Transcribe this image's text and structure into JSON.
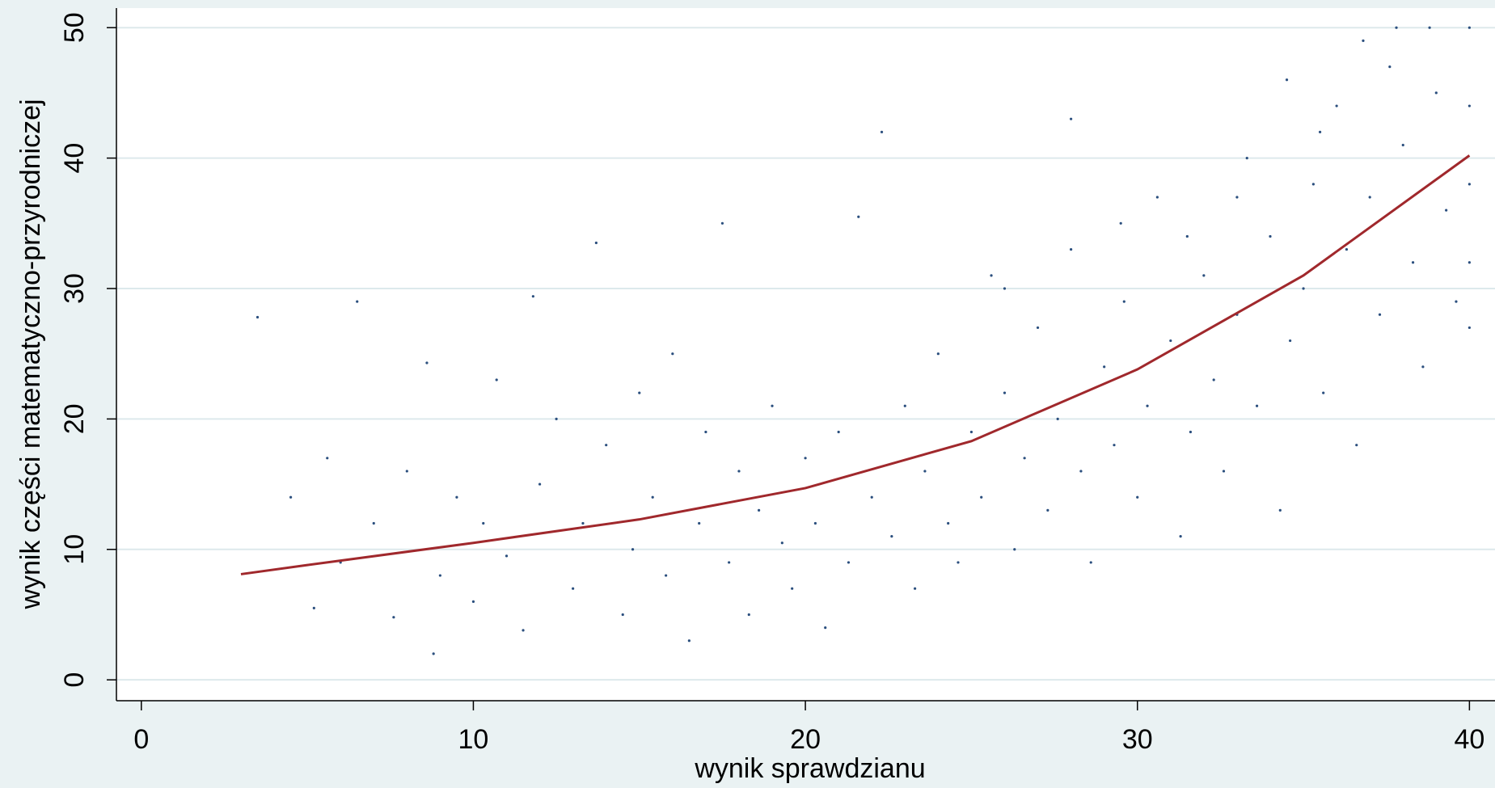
{
  "chart_data": {
    "type": "scatter",
    "x_label": "wynik sprawdzianu",
    "y_label": "wynik części matematyczno-przyrodniczej",
    "xlim": [
      -0.75,
      40.77
    ],
    "ylim": [
      -1.6,
      51.5
    ],
    "xticks": [
      0,
      10,
      20,
      30,
      40
    ],
    "yticks": [
      0,
      10,
      20,
      30,
      40,
      50
    ],
    "grid": true,
    "series": [
      {
        "type": "scatter",
        "color": "#2b4f7e",
        "x": [
          3.5,
          4.5,
          5.2,
          5.6,
          6,
          6.5,
          7,
          7.6,
          8,
          8.6,
          8.8,
          9,
          9.5,
          10,
          10.3,
          10.7,
          11,
          11.5,
          11.8,
          12,
          12.5,
          13,
          13.3,
          13.7,
          14,
          14.5,
          14.8,
          15,
          15.4,
          15.8,
          16,
          16.5,
          16.8,
          17,
          17.5,
          17.7,
          18,
          18.3,
          18.6,
          19,
          19.3,
          19.6,
          20,
          20.3,
          20.6,
          21,
          21.3,
          21.6,
          22,
          22.3,
          22.6,
          23,
          23.3,
          23.6,
          24,
          24.3,
          24.6,
          25,
          25.3,
          25.6,
          26,
          26.3,
          26.6,
          27,
          27.3,
          27.6,
          28,
          28.3,
          28.6,
          29,
          29.3,
          29.6,
          30,
          30.3,
          30.6,
          31,
          31.3,
          31.6,
          32,
          32.3,
          32.6,
          33,
          33.3,
          33.6,
          34,
          34.3,
          34.6,
          35,
          35.3,
          35.6,
          36,
          36.3,
          36.6,
          37,
          37.3,
          37.6,
          38,
          38.3,
          38.6,
          39,
          39.3,
          39.6,
          40,
          40,
          40,
          40,
          40,
          38.8,
          37.8,
          36.8,
          35.5,
          34.5,
          33,
          31.5,
          29.5,
          28,
          26
        ],
        "y": [
          27.8,
          14,
          5.5,
          17,
          9,
          29,
          12,
          4.8,
          16,
          24.3,
          2,
          8,
          14,
          6,
          12,
          23,
          9.5,
          3.8,
          29.4,
          15,
          20,
          7,
          12,
          33.5,
          18,
          5,
          10,
          22,
          14,
          8,
          25,
          3,
          12,
          19,
          35,
          9,
          16,
          5,
          13,
          21,
          10.5,
          7,
          17,
          12,
          4,
          19,
          9,
          35.5,
          14,
          42,
          11,
          21,
          7,
          16,
          25,
          12,
          9,
          19,
          14,
          31,
          22,
          10,
          17,
          27,
          13,
          20,
          33,
          16,
          9,
          24,
          18,
          29,
          14,
          21,
          37,
          26,
          11,
          19,
          31,
          23,
          16,
          28,
          40,
          21,
          34,
          13,
          26,
          30,
          38,
          22,
          44,
          33,
          18,
          37,
          28,
          47,
          41,
          32,
          24,
          45,
          36,
          29,
          50,
          44,
          38,
          32,
          27,
          50,
          50,
          49,
          42,
          46,
          37,
          34,
          35,
          43,
          30
        ]
      },
      {
        "type": "line",
        "color": "#a0282c",
        "x": [
          3,
          5,
          10,
          15,
          20,
          25,
          30,
          35,
          40
        ],
        "y": [
          8.1,
          8.8,
          10.5,
          12.3,
          14.7,
          18.3,
          23.8,
          31,
          40.2
        ]
      }
    ]
  }
}
